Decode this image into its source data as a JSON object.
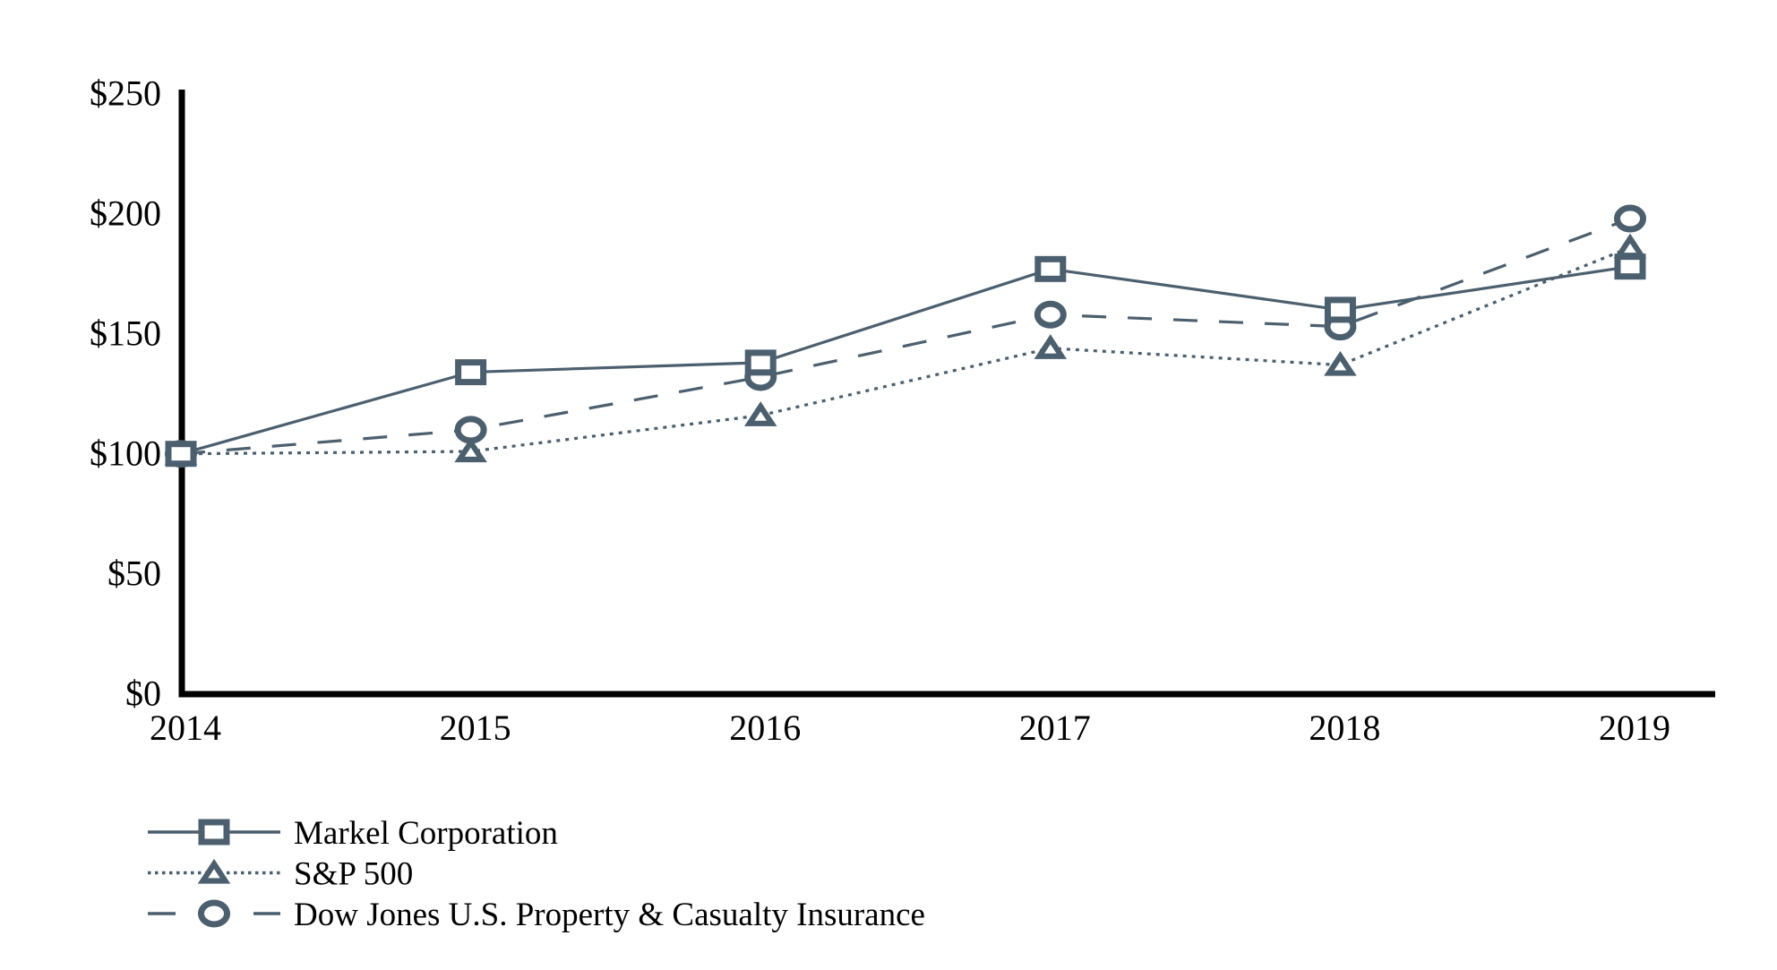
{
  "page": {
    "background": "#ffffff",
    "title": "Stock performance comparison line chart"
  },
  "chart_data": {
    "type": "line",
    "title": "",
    "xlabel": "",
    "ylabel": "",
    "x_categories": [
      "2014",
      "2015",
      "2016",
      "2017",
      "2018",
      "2019"
    ],
    "y_axis": {
      "range": [
        0,
        250
      ],
      "grid": false,
      "ticks": [
        {
          "value": 0,
          "label": "$0"
        },
        {
          "value": 50,
          "label": "$50"
        },
        {
          "value": 100,
          "label": "$100"
        },
        {
          "value": 150,
          "label": "$150"
        },
        {
          "value": 200,
          "label": "$200"
        },
        {
          "value": 250,
          "label": "$250"
        }
      ]
    },
    "series": [
      {
        "name": "Markel Corporation",
        "marker": "square",
        "line_style": "solid",
        "values": [
          100,
          134,
          138,
          177,
          160,
          178
        ]
      },
      {
        "name": "S&P 500",
        "marker": "triangle",
        "line_style": "dotted",
        "values": [
          100,
          101,
          116,
          144,
          137,
          186
        ]
      },
      {
        "name": "Dow Jones U.S. Property & Casualty Insurance",
        "marker": "circle",
        "line_style": "dashed",
        "values": [
          100,
          110,
          132,
          158,
          153,
          198
        ]
      }
    ],
    "legend": {
      "position": "bottom-left"
    },
    "colors": {
      "series": "#4c5f6e",
      "axis": "#000000",
      "text": "#000000",
      "marker_fill": "#ffffff",
      "background": "#ffffff"
    }
  }
}
